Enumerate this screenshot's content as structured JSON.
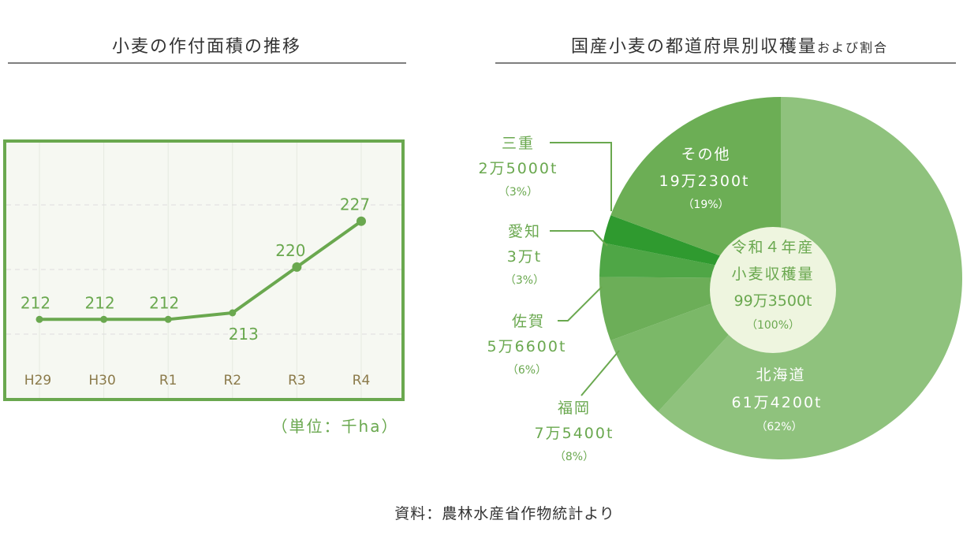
{
  "chart_data": [
    {
      "type": "line",
      "title": "小麦の作付面積の推移",
      "categories": [
        "H29",
        "H30",
        "R1",
        "R2",
        "R3",
        "R4"
      ],
      "values": [
        212,
        212,
        212,
        213,
        220,
        227
      ],
      "unit_note": "（単位：千ha）",
      "ylim": [
        200,
        239
      ],
      "grid": true,
      "color": "#6aa84f"
    },
    {
      "type": "pie",
      "title": "国産小麦の都道府県別収穫量",
      "title_suffix": "および割合",
      "center": {
        "line1": "令和４年産",
        "line2": "小麦収穫量",
        "amount": "99万3500t",
        "percent": "（100%）"
      },
      "slices": [
        {
          "name": "北海道",
          "amount": "61万4200t",
          "percent": "（62%）",
          "value": 614200,
          "color": "#8fc27d"
        },
        {
          "name": "福岡",
          "amount": "7万5400t",
          "percent": "（8%）",
          "value": 75400,
          "color": "#7bb868"
        },
        {
          "name": "佐賀",
          "amount": "5万6600t",
          "percent": "（6%）",
          "value": 56600,
          "color": "#6cae58"
        },
        {
          "name": "愛知",
          "amount": "3万t",
          "percent": "（3%）",
          "value": 30000,
          "color": "#4fa646"
        },
        {
          "name": "三重",
          "amount": "2万5000t",
          "percent": "（3%）",
          "value": 25000,
          "color": "#2f9a2f"
        },
        {
          "name": "その他",
          "amount": "19万2300t",
          "percent": "（19%）",
          "value": 192300,
          "color": "#6cae55"
        }
      ]
    }
  ],
  "source": "資料：農林水産省作物統計より"
}
